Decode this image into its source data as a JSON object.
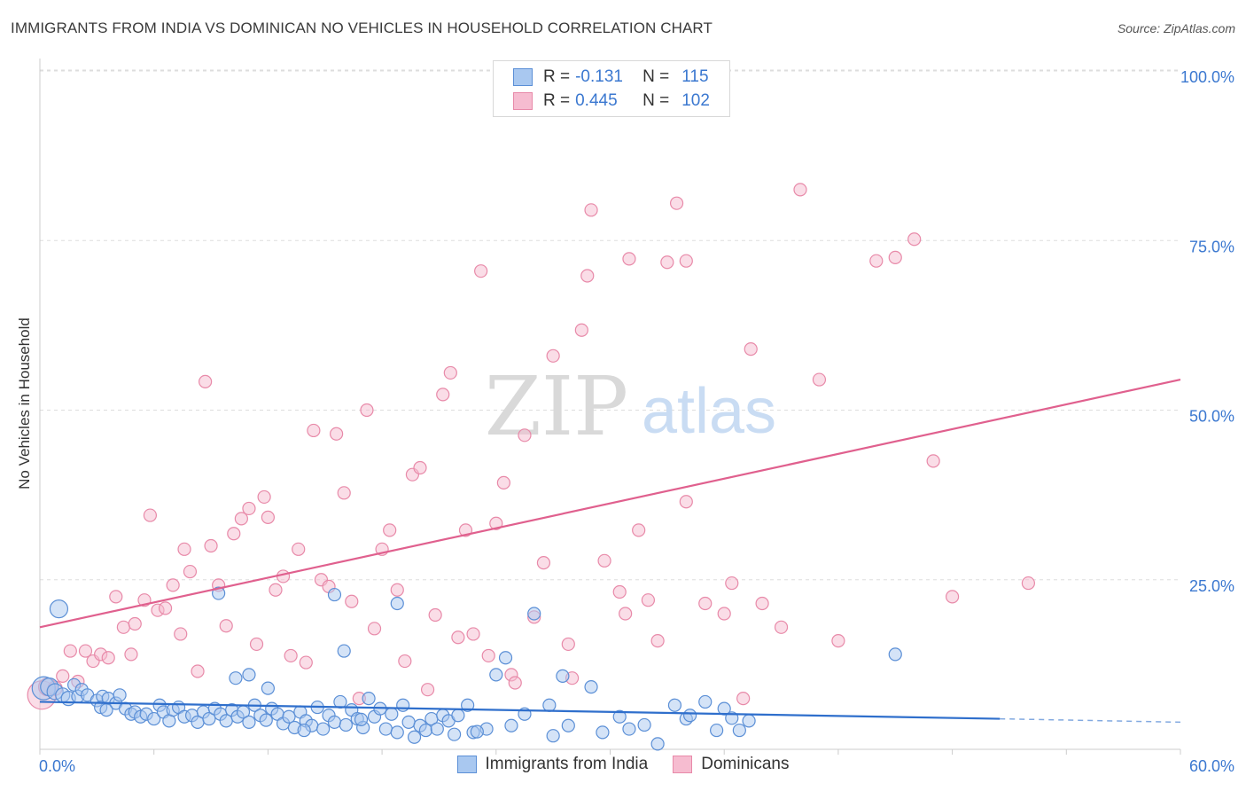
{
  "header": {
    "title": "IMMIGRANTS FROM INDIA VS DOMINICAN NO VEHICLES IN HOUSEHOLD CORRELATION CHART",
    "source": "Source: ZipAtlas.com"
  },
  "watermark": {
    "zip": "ZIP",
    "atlas": "atlas"
  },
  "legend": {
    "rows": [
      {
        "r_label": "R =",
        "r_value": "-0.131",
        "n_label": "N =",
        "n_value": "115"
      },
      {
        "r_label": "R =",
        "r_value": "0.445",
        "n_label": "N =",
        "n_value": "102"
      }
    ]
  },
  "colors": {
    "india_fill": "#a9c8f0",
    "india_stroke": "#5b8fd6",
    "india_line": "#2f6fcc",
    "dominican_fill": "#f6bcd0",
    "dominican_stroke": "#e88aa9",
    "dominican_line": "#e0608e",
    "axis_text": "#3b78d0",
    "grid": "#dddddd"
  },
  "chart_data": {
    "type": "scatter",
    "title": "IMMIGRANTS FROM INDIA VS DOMINICAN NO VEHICLES IN HOUSEHOLD CORRELATION CHART",
    "xlabel": "",
    "ylabel": "No Vehicles in Household",
    "xlim": [
      0,
      60
    ],
    "ylim": [
      0,
      103
    ],
    "x_tick_labels": [
      "0.0%",
      "60.0%"
    ],
    "y_ticks": [
      25,
      50,
      75,
      100
    ],
    "y_tick_labels": [
      "25.0%",
      "50.0%",
      "75.0%",
      "100.0%"
    ],
    "grid": true,
    "legend_position": "bottom",
    "series": [
      {
        "name": "Immigrants from India",
        "r": -0.131,
        "n": 115,
        "trend": {
          "x": [
            0,
            50.5,
            60
          ],
          "y": [
            7.0,
            4.5,
            4.0
          ],
          "dashed_from": 50.5
        },
        "points": [
          [
            1.0,
            20.7,
            10
          ],
          [
            0.2,
            9.0,
            13
          ],
          [
            0.5,
            9.2,
            10
          ],
          [
            0.8,
            8.5,
            9
          ],
          [
            1.2,
            8.0,
            8
          ],
          [
            1.5,
            7.5,
            8
          ],
          [
            1.8,
            9.5,
            7
          ],
          [
            2.0,
            7.8,
            7
          ],
          [
            2.2,
            8.8,
            7
          ],
          [
            2.5,
            8.0,
            7
          ],
          [
            3.0,
            7.2,
            7
          ],
          [
            3.3,
            7.8,
            7
          ],
          [
            3.6,
            7.5,
            7
          ],
          [
            4.0,
            6.8,
            7
          ],
          [
            4.2,
            8.0,
            7
          ],
          [
            3.2,
            6.2,
            7
          ],
          [
            3.5,
            5.8,
            7
          ],
          [
            4.5,
            6.0,
            7
          ],
          [
            4.8,
            5.2,
            7
          ],
          [
            5.0,
            5.5,
            7
          ],
          [
            5.3,
            4.8,
            7
          ],
          [
            5.6,
            5.2,
            7
          ],
          [
            6.0,
            4.5,
            7
          ],
          [
            6.3,
            6.5,
            7
          ],
          [
            6.5,
            5.5,
            7
          ],
          [
            6.8,
            4.2,
            7
          ],
          [
            7.0,
            5.8,
            7
          ],
          [
            7.3,
            6.2,
            7
          ],
          [
            7.6,
            4.8,
            7
          ],
          [
            8.0,
            5.0,
            7
          ],
          [
            8.3,
            4.0,
            7
          ],
          [
            8.6,
            5.5,
            7
          ],
          [
            8.9,
            4.5,
            7
          ],
          [
            9.2,
            6.0,
            7
          ],
          [
            9.5,
            5.2,
            7
          ],
          [
            9.8,
            4.2,
            7
          ],
          [
            10.1,
            5.8,
            7
          ],
          [
            10.4,
            4.8,
            7
          ],
          [
            10.7,
            5.5,
            7
          ],
          [
            11.0,
            4.0,
            7
          ],
          [
            11.3,
            6.5,
            7
          ],
          [
            11.6,
            5.0,
            7
          ],
          [
            11.9,
            4.3,
            7
          ],
          [
            12.2,
            6.0,
            7
          ],
          [
            12.5,
            5.2,
            7
          ],
          [
            12.8,
            3.8,
            7
          ],
          [
            13.1,
            4.8,
            7
          ],
          [
            13.4,
            3.2,
            7
          ],
          [
            13.7,
            5.5,
            7
          ],
          [
            14.0,
            4.2,
            7
          ],
          [
            14.3,
            3.5,
            7
          ],
          [
            14.6,
            6.2,
            7
          ],
          [
            14.9,
            3.0,
            7
          ],
          [
            15.2,
            5.0,
            7
          ],
          [
            15.5,
            4.0,
            7
          ],
          [
            15.8,
            7.0,
            7
          ],
          [
            16.1,
            3.6,
            7
          ],
          [
            16.4,
            5.8,
            7
          ],
          [
            16.7,
            4.5,
            7
          ],
          [
            17.0,
            3.2,
            7
          ],
          [
            17.3,
            7.5,
            7
          ],
          [
            17.6,
            4.8,
            7
          ],
          [
            17.9,
            6.0,
            7
          ],
          [
            18.2,
            3.0,
            7
          ],
          [
            18.5,
            5.2,
            7
          ],
          [
            18.8,
            2.5,
            7
          ],
          [
            19.1,
            6.5,
            7
          ],
          [
            19.4,
            4.0,
            7
          ],
          [
            19.7,
            1.8,
            7
          ],
          [
            20.0,
            3.5,
            7
          ],
          [
            20.3,
            2.8,
            7
          ],
          [
            20.6,
            4.5,
            7
          ],
          [
            20.9,
            3.0,
            7
          ],
          [
            21.2,
            5.0,
            7
          ],
          [
            21.5,
            4.2,
            7
          ],
          [
            22.0,
            5.0,
            7
          ],
          [
            22.5,
            6.5,
            7
          ],
          [
            22.8,
            2.5,
            7
          ],
          [
            23.5,
            3.0,
            7
          ],
          [
            24.0,
            11.0,
            7
          ],
          [
            24.5,
            13.5,
            7
          ],
          [
            24.8,
            3.5,
            7
          ],
          [
            25.5,
            5.2,
            7
          ],
          [
            26.0,
            20.0,
            7
          ],
          [
            26.8,
            6.5,
            7
          ],
          [
            27.5,
            10.8,
            7
          ],
          [
            27.8,
            3.5,
            7
          ],
          [
            29.0,
            9.2,
            7
          ],
          [
            29.6,
            2.5,
            7
          ],
          [
            30.5,
            4.8,
            7
          ],
          [
            31.0,
            3.0,
            7
          ],
          [
            32.5,
            0.8,
            7
          ],
          [
            33.4,
            6.5,
            7
          ],
          [
            34.0,
            4.5,
            7
          ],
          [
            34.2,
            5.0,
            7
          ],
          [
            35.0,
            7.0,
            7
          ],
          [
            35.6,
            2.8,
            7
          ],
          [
            36.0,
            6.0,
            7
          ],
          [
            36.8,
            2.8,
            7
          ],
          [
            37.3,
            4.2,
            7
          ],
          [
            45.0,
            14.0,
            7
          ],
          [
            9.4,
            23.0,
            7
          ],
          [
            11.0,
            11.0,
            7
          ],
          [
            15.5,
            22.8,
            7
          ],
          [
            16.0,
            14.5,
            7
          ],
          [
            18.8,
            21.5,
            7
          ],
          [
            12.0,
            9.0,
            7
          ],
          [
            10.3,
            10.5,
            7
          ],
          [
            21.8,
            2.2,
            7
          ],
          [
            23.0,
            2.6,
            7
          ],
          [
            27.0,
            2.0,
            7
          ],
          [
            31.8,
            3.6,
            7
          ],
          [
            36.4,
            4.6,
            7
          ],
          [
            13.9,
            2.8,
            7
          ],
          [
            16.9,
            4.4,
            7
          ]
        ]
      },
      {
        "name": "Dominicans",
        "r": 0.445,
        "n": 102,
        "trend": {
          "x": [
            0,
            60
          ],
          "y": [
            18.0,
            54.5
          ]
        },
        "points": [
          [
            0.1,
            8.0,
            16
          ],
          [
            0.4,
            9.2,
            10
          ],
          [
            0.8,
            9.0,
            8
          ],
          [
            1.2,
            10.8,
            7
          ],
          [
            1.6,
            14.5,
            7
          ],
          [
            2.0,
            10.0,
            7
          ],
          [
            2.4,
            14.5,
            7
          ],
          [
            2.8,
            13.0,
            7
          ],
          [
            3.2,
            14.0,
            7
          ],
          [
            3.6,
            13.5,
            7
          ],
          [
            4.0,
            22.5,
            7
          ],
          [
            4.4,
            18.0,
            7
          ],
          [
            4.8,
            14.0,
            7
          ],
          [
            5.0,
            18.5,
            7
          ],
          [
            5.8,
            34.5,
            7
          ],
          [
            5.5,
            22.0,
            7
          ],
          [
            6.2,
            20.5,
            7
          ],
          [
            6.6,
            20.8,
            7
          ],
          [
            7.0,
            24.2,
            7
          ],
          [
            7.4,
            17.0,
            7
          ],
          [
            7.6,
            29.5,
            7
          ],
          [
            7.9,
            26.2,
            7
          ],
          [
            8.3,
            11.5,
            7
          ],
          [
            8.7,
            54.2,
            7
          ],
          [
            9.0,
            30.0,
            7
          ],
          [
            9.4,
            24.2,
            7
          ],
          [
            9.8,
            18.2,
            7
          ],
          [
            10.2,
            31.8,
            7
          ],
          [
            10.6,
            34.0,
            7
          ],
          [
            11.0,
            35.5,
            7
          ],
          [
            11.4,
            15.5,
            7
          ],
          [
            11.8,
            37.2,
            7
          ],
          [
            12.0,
            34.2,
            7
          ],
          [
            12.4,
            23.5,
            7
          ],
          [
            12.8,
            25.5,
            7
          ],
          [
            13.2,
            13.8,
            7
          ],
          [
            13.6,
            29.5,
            7
          ],
          [
            14.0,
            12.8,
            7
          ],
          [
            14.4,
            47.0,
            7
          ],
          [
            14.8,
            25.0,
            7
          ],
          [
            15.2,
            24.0,
            7
          ],
          [
            15.6,
            46.5,
            7
          ],
          [
            16.0,
            37.8,
            7
          ],
          [
            16.4,
            21.8,
            7
          ],
          [
            16.8,
            7.5,
            7
          ],
          [
            17.2,
            50.0,
            7
          ],
          [
            17.6,
            17.8,
            7
          ],
          [
            18.0,
            29.5,
            7
          ],
          [
            18.4,
            32.3,
            7
          ],
          [
            18.8,
            23.5,
            7
          ],
          [
            19.2,
            13.0,
            7
          ],
          [
            19.6,
            40.5,
            7
          ],
          [
            20.0,
            41.5,
            7
          ],
          [
            20.4,
            8.8,
            7
          ],
          [
            20.8,
            19.8,
            7
          ],
          [
            21.2,
            52.3,
            7
          ],
          [
            21.6,
            55.5,
            7
          ],
          [
            22.0,
            16.5,
            7
          ],
          [
            22.4,
            32.3,
            7
          ],
          [
            22.8,
            17.0,
            7
          ],
          [
            23.2,
            70.5,
            7
          ],
          [
            23.6,
            13.8,
            7
          ],
          [
            24.0,
            33.3,
            7
          ],
          [
            24.4,
            39.3,
            7
          ],
          [
            24.8,
            11.0,
            7
          ],
          [
            25.5,
            46.3,
            7
          ],
          [
            26.0,
            19.5,
            7
          ],
          [
            26.5,
            27.5,
            7
          ],
          [
            27.0,
            58.0,
            7
          ],
          [
            27.8,
            15.5,
            7
          ],
          [
            28.0,
            10.5,
            7
          ],
          [
            28.5,
            61.8,
            7
          ],
          [
            29.0,
            79.5,
            7
          ],
          [
            29.7,
            27.8,
            7
          ],
          [
            30.5,
            23.2,
            7
          ],
          [
            30.8,
            20.0,
            7
          ],
          [
            31.0,
            72.3,
            7
          ],
          [
            31.5,
            32.3,
            7
          ],
          [
            32.0,
            22.0,
            7
          ],
          [
            32.5,
            16.0,
            7
          ],
          [
            33.0,
            71.8,
            7
          ],
          [
            33.5,
            80.5,
            7
          ],
          [
            34.0,
            36.5,
            7
          ],
          [
            35.0,
            21.5,
            7
          ],
          [
            36.0,
            20.0,
            7
          ],
          [
            36.4,
            24.5,
            7
          ],
          [
            37.0,
            7.5,
            7
          ],
          [
            37.4,
            59.0,
            7
          ],
          [
            38.0,
            21.5,
            7
          ],
          [
            39.0,
            18.0,
            7
          ],
          [
            40.0,
            82.5,
            7
          ],
          [
            41.0,
            54.5,
            7
          ],
          [
            42.0,
            16.0,
            7
          ],
          [
            44.0,
            72.0,
            7
          ],
          [
            45.0,
            72.5,
            7
          ],
          [
            46.0,
            75.2,
            7
          ],
          [
            47.0,
            42.5,
            7
          ],
          [
            48.0,
            22.5,
            7
          ],
          [
            52.0,
            24.5,
            7
          ],
          [
            28.8,
            69.8,
            7
          ],
          [
            34.0,
            72.0,
            7
          ],
          [
            25.0,
            9.8,
            7
          ]
        ]
      }
    ]
  },
  "bottom_legend": {
    "items": [
      {
        "label": "Immigrants from India"
      },
      {
        "label": "Dominicans"
      }
    ]
  }
}
